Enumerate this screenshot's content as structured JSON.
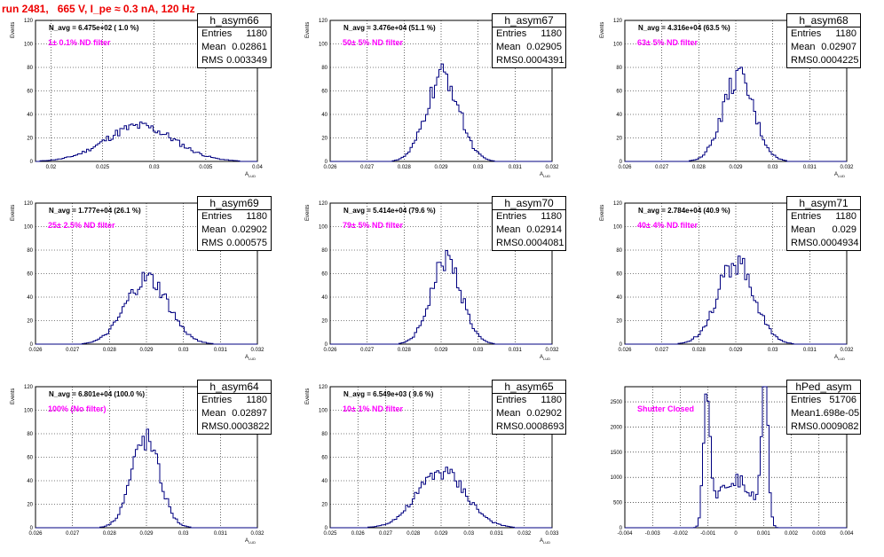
{
  "title": "run 2481,   665 V, I_pe ≈ 0.3 nA, 120 Hz",
  "chart_data": [
    {
      "type": "bar",
      "hist": "h_asym66",
      "n_avg": "N_avg = 6.475e+02 ( 1.0 %)",
      "filter": "1± 0.1% ND filter",
      "stats": {
        "Entries": "1180",
        "Mean": "0.02861",
        "RMS": "0.003349"
      },
      "xlim": [
        0.0185,
        0.04
      ],
      "xticks": [
        "0.02",
        "0.025",
        "0.03",
        "0.035",
        "0.04"
      ],
      "xtick_vals": [
        0.02,
        0.025,
        0.03,
        0.035,
        0.04
      ],
      "ylim": [
        0,
        120
      ],
      "yticks": [
        "0",
        "20",
        "40",
        "60",
        "80",
        "100",
        "120"
      ],
      "xlabel": "A",
      "xlabel_sub": "LUD",
      "ylabel": "Events",
      "mean": 0.02861,
      "sigma": 0.003349,
      "peak": 30
    },
    {
      "type": "bar",
      "hist": "h_asym67",
      "n_avg": "N_avg = 3.476e+04 (51.1 %)",
      "filter": "50± 5% ND filter",
      "stats": {
        "Entries": "1180",
        "Mean": "0.02905",
        "RMS": "0.0004391"
      },
      "xlim": [
        0.026,
        0.032
      ],
      "xticks": [
        "0.026",
        "0.027",
        "0.028",
        "0.029",
        "0.03",
        "0.031",
        "0.032"
      ],
      "xtick_vals": [
        0.026,
        0.027,
        0.028,
        0.029,
        0.03,
        0.031,
        0.032
      ],
      "ylim": [
        0,
        120
      ],
      "yticks": [
        "0",
        "20",
        "40",
        "60",
        "80",
        "100",
        "120"
      ],
      "xlabel": "A",
      "xlabel_sub": "LUD",
      "ylabel": "Events",
      "mean": 0.02905,
      "sigma": 0.0004391,
      "peak": 73
    },
    {
      "type": "bar",
      "hist": "h_asym68",
      "n_avg": "N_avg = 4.316e+04 (63.5 %)",
      "filter": "63± 5% ND filter",
      "stats": {
        "Entries": "1180",
        "Mean": "0.02907",
        "RMS": "0.0004225"
      },
      "xlim": [
        0.026,
        0.032
      ],
      "xticks": [
        "0.026",
        "0.027",
        "0.028",
        "0.029",
        "0.03",
        "0.031",
        "0.032"
      ],
      "xtick_vals": [
        0.026,
        0.027,
        0.028,
        0.029,
        0.03,
        0.031,
        0.032
      ],
      "ylim": [
        0,
        120
      ],
      "yticks": [
        "0",
        "20",
        "40",
        "60",
        "80",
        "100",
        "120"
      ],
      "xlabel": "A",
      "xlabel_sub": "LUD",
      "ylabel": "Events",
      "mean": 0.02907,
      "sigma": 0.0004225,
      "peak": 71
    },
    {
      "type": "bar",
      "hist": "h_asym69",
      "n_avg": "N_avg = 1.777e+04 (26.1 %)",
      "filter": "25± 2.5% ND filter",
      "stats": {
        "Entries": "1180",
        "Mean": "0.02902",
        "RMS": "0.000575"
      },
      "xlim": [
        0.026,
        0.032
      ],
      "xticks": [
        "0.026",
        "0.027",
        "0.028",
        "0.029",
        "0.03",
        "0.031",
        "0.032"
      ],
      "xtick_vals": [
        0.026,
        0.027,
        0.028,
        0.029,
        0.03,
        0.031,
        0.032
      ],
      "ylim": [
        0,
        120
      ],
      "yticks": [
        "0",
        "20",
        "40",
        "60",
        "80",
        "100",
        "120"
      ],
      "xlabel": "A",
      "xlabel_sub": "LUD",
      "ylabel": "Events",
      "mean": 0.02902,
      "sigma": 0.000575,
      "peak": 55
    },
    {
      "type": "bar",
      "hist": "h_asym70",
      "n_avg": "N_avg = 5.414e+04 (79.6 %)",
      "filter": "79± 5% ND filter",
      "stats": {
        "Entries": "1180",
        "Mean": "0.02914",
        "RMS": "0.0004081"
      },
      "xlim": [
        0.026,
        0.032
      ],
      "xticks": [
        "0.026",
        "0.027",
        "0.028",
        "0.029",
        "0.03",
        "0.031",
        "0.032"
      ],
      "xtick_vals": [
        0.026,
        0.027,
        0.028,
        0.029,
        0.03,
        0.031,
        0.032
      ],
      "ylim": [
        0,
        120
      ],
      "yticks": [
        "0",
        "20",
        "40",
        "60",
        "80",
        "100",
        "120"
      ],
      "xlabel": "A",
      "xlabel_sub": "LUD",
      "ylabel": "Events",
      "mean": 0.02914,
      "sigma": 0.0004081,
      "peak": 72
    },
    {
      "type": "bar",
      "hist": "h_asym71",
      "n_avg": "N_avg = 2.784e+04 (40.9 %)",
      "filter": "40± 4% ND filter",
      "stats": {
        "Entries": "1180",
        "Mean": "0.029",
        "RMS": "0.0004934"
      },
      "xlim": [
        0.026,
        0.032
      ],
      "xticks": [
        "0.026",
        "0.027",
        "0.028",
        "0.029",
        "0.03",
        "0.031",
        "0.032"
      ],
      "xtick_vals": [
        0.026,
        0.027,
        0.028,
        0.029,
        0.03,
        0.031,
        0.032
      ],
      "ylim": [
        0,
        120
      ],
      "yticks": [
        "0",
        "20",
        "40",
        "60",
        "80",
        "100",
        "120"
      ],
      "xlabel": "A",
      "xlabel_sub": "LUD",
      "ylabel": "Events",
      "mean": 0.029,
      "sigma": 0.0004934,
      "peak": 70
    },
    {
      "type": "bar",
      "hist": "h_asym64",
      "n_avg": "N_avg = 6.801e+04 (100.0 %)",
      "filter": "100% (No filter)",
      "stats": {
        "Entries": "1180",
        "Mean": "0.02897",
        "RMS": "0.0003822"
      },
      "xlim": [
        0.026,
        0.032
      ],
      "xticks": [
        "0.026",
        "0.027",
        "0.028",
        "0.029",
        "0.03",
        "0.031",
        "0.032"
      ],
      "xtick_vals": [
        0.026,
        0.027,
        0.028,
        0.029,
        0.03,
        0.031,
        0.032
      ],
      "ylim": [
        0,
        120
      ],
      "yticks": [
        "0",
        "20",
        "40",
        "60",
        "80",
        "100",
        "120"
      ],
      "xlabel": "A",
      "xlabel_sub": "LUD",
      "ylabel": "Events",
      "mean": 0.02897,
      "sigma": 0.0003822,
      "peak": 76
    },
    {
      "type": "bar",
      "hist": "h_asym65",
      "n_avg": "N_avg = 6.549e+03 ( 9.6 %)",
      "filter": "10± 1% ND filter",
      "stats": {
        "Entries": "1180",
        "Mean": "0.02902",
        "RMS": "0.0008693"
      },
      "xlim": [
        0.025,
        0.033
      ],
      "xticks": [
        "0.025",
        "0.026",
        "0.027",
        "0.028",
        "0.029",
        "0.03",
        "0.031",
        "0.032",
        "0.033"
      ],
      "xtick_vals": [
        0.025,
        0.026,
        0.027,
        0.028,
        0.029,
        0.03,
        0.031,
        0.032,
        0.033
      ],
      "ylim": [
        0,
        120
      ],
      "yticks": [
        "0",
        "20",
        "40",
        "60",
        "80",
        "100",
        "120"
      ],
      "xlabel": "A",
      "xlabel_sub": "LUD",
      "ylabel": "Events",
      "mean": 0.02902,
      "sigma": 0.0008693,
      "peak": 48
    },
    {
      "type": "bar",
      "hist": "hPed_asym",
      "n_avg": "",
      "filter": "Shutter Closed",
      "stats": {
        "Entries": "51706",
        "Mean": "1.698e-05",
        "RMS": "0.0009082"
      },
      "xlim": [
        -0.004,
        0.004
      ],
      "xticks": [
        "-0.004",
        "-0.003",
        "-0.002",
        "-0.001",
        "0",
        "0.001",
        "0.002",
        "0.003",
        "0.004"
      ],
      "xtick_vals": [
        -0.004,
        -0.003,
        -0.002,
        -0.001,
        0,
        0.001,
        0.002,
        0.003,
        0.004
      ],
      "ylim": [
        0,
        2800
      ],
      "yticks": [
        "0",
        "500",
        "1000",
        "1500",
        "2000",
        "2500"
      ],
      "ytick_vals": [
        0,
        500,
        1000,
        1500,
        2000,
        2500
      ],
      "xlabel": "",
      "xlabel_sub": "",
      "ylabel": "",
      "double_peak": true,
      "peak": 2700
    }
  ]
}
